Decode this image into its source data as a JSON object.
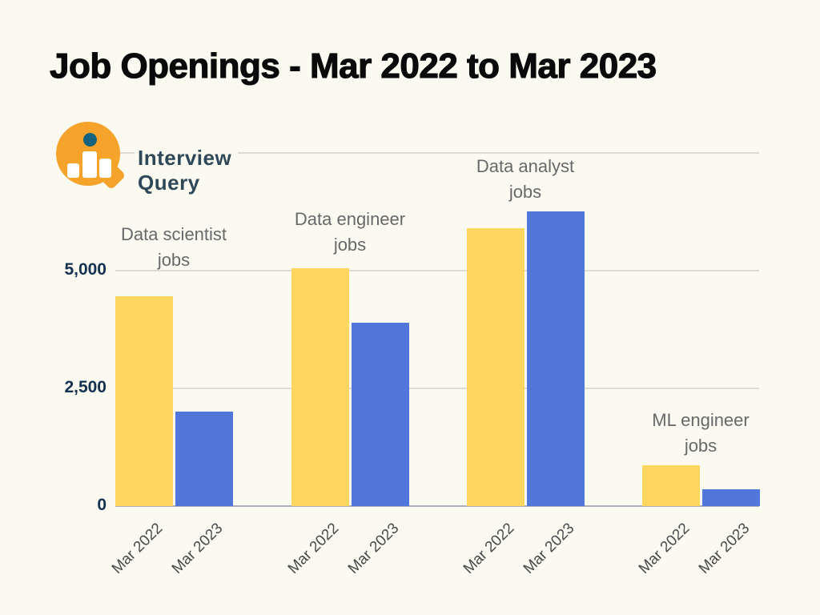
{
  "page": {
    "title": "Job Openings - Mar 2022 to Mar 2023"
  },
  "logo": {
    "brand": "Interview Query"
  },
  "colors": {
    "background": "#FBFAF1",
    "title": "#0A0A0A",
    "bar_mar_2022": "#FCD65F",
    "bar_mar_2023": "#5277DB",
    "gridline": "#DDDCD4",
    "baseline": "#A9AFB9",
    "y_tick_label": "#14314F",
    "group_label": "#686868",
    "x_tick_label": "#4A4A4A",
    "logo_orange": "#F5A32B",
    "logo_teal_dot": "#15637E",
    "brand_text": "#2F4858"
  },
  "chart_data": {
    "type": "bar",
    "title": "Job Openings - Mar 2022 to Mar 2023",
    "categories": [
      "Data scientist jobs",
      "Data engineer jobs",
      "Data analyst jobs",
      "ML engineer jobs"
    ],
    "category_label_lines": [
      [
        "Data scientist",
        "jobs"
      ],
      [
        "Data engineer",
        "jobs"
      ],
      [
        "Data analyst",
        "jobs"
      ],
      [
        "ML engineer",
        "jobs"
      ]
    ],
    "series": [
      {
        "name": "Mar 2022",
        "color": "#FCD65F",
        "values": [
          4450,
          5050,
          5900,
          875
        ]
      },
      {
        "name": "Mar 2023",
        "color": "#5277DB",
        "values": [
          2000,
          3900,
          6250,
          350
        ]
      }
    ],
    "xlabel": "",
    "ylabel": "",
    "ylim": [
      0,
      7500
    ],
    "yticks": [
      {
        "value": 0,
        "label": "0"
      },
      {
        "value": 2500,
        "label": "2,500"
      },
      {
        "value": 5000,
        "label": "5,000"
      },
      {
        "value": 7500,
        "label": ""
      }
    ],
    "grid": true,
    "legend_position": "none"
  }
}
